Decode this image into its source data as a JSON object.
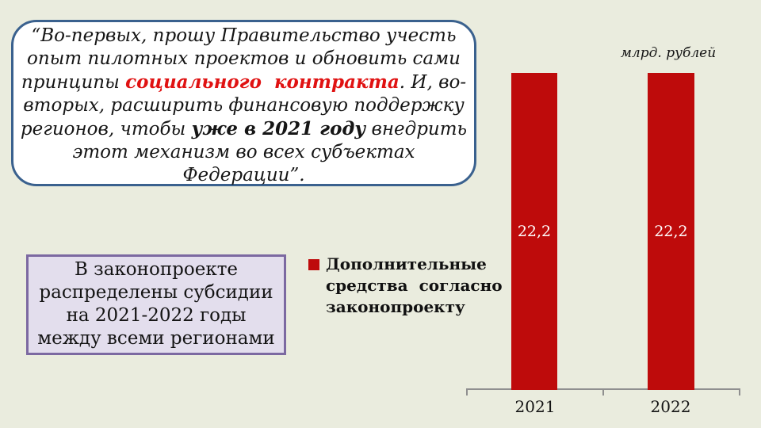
{
  "slide": {
    "quote": {
      "line1": "“Во-первых, прошу Правительство учесть",
      "line2": "опыт пилотных проектов и обновить сами",
      "line3_pre": "принципы ",
      "line3_red": "социального  контракта",
      "line3_post": ". И, во-",
      "line4": "вторых, расширить финансовую поддержку",
      "line5_pre": "регионов, чтобы ",
      "line5_bold": "уже в 2021 году",
      "line5_post": " внедрить",
      "line6": "этот механизм во всех субъектах",
      "line7": "Федерации”."
    },
    "info_box": {
      "line1": "В законопроекте",
      "line2": "распределены субсидии",
      "line3": "на 2021-2022 годы",
      "line4": "между всеми регионами"
    }
  },
  "chart_data": {
    "type": "bar",
    "title": "",
    "unit_label": "млрд. рублей",
    "categories": [
      "2021",
      "2022"
    ],
    "series": [
      {
        "name": "Дополнительные средства согласно законопроекту",
        "values": [
          22.2,
          22.2
        ]
      }
    ],
    "value_labels": [
      "22,2",
      "22,2"
    ],
    "value_label_position": "center",
    "ylim": [
      0,
      25
    ],
    "grid": false,
    "legend_position": "left",
    "legend": {
      "line1": "Дополнительные",
      "line2": "средства  согласно",
      "line3": "законопроекту"
    },
    "colors": {
      "bar": "#be0b0b",
      "quote_accent_red": "#e01212",
      "quote_border_blue": "#3a618e",
      "info_border_purple": "#7c69a1",
      "info_fill": "#e3deed",
      "background": "#eaecde",
      "axis_gray": "#8f8f8f"
    }
  }
}
